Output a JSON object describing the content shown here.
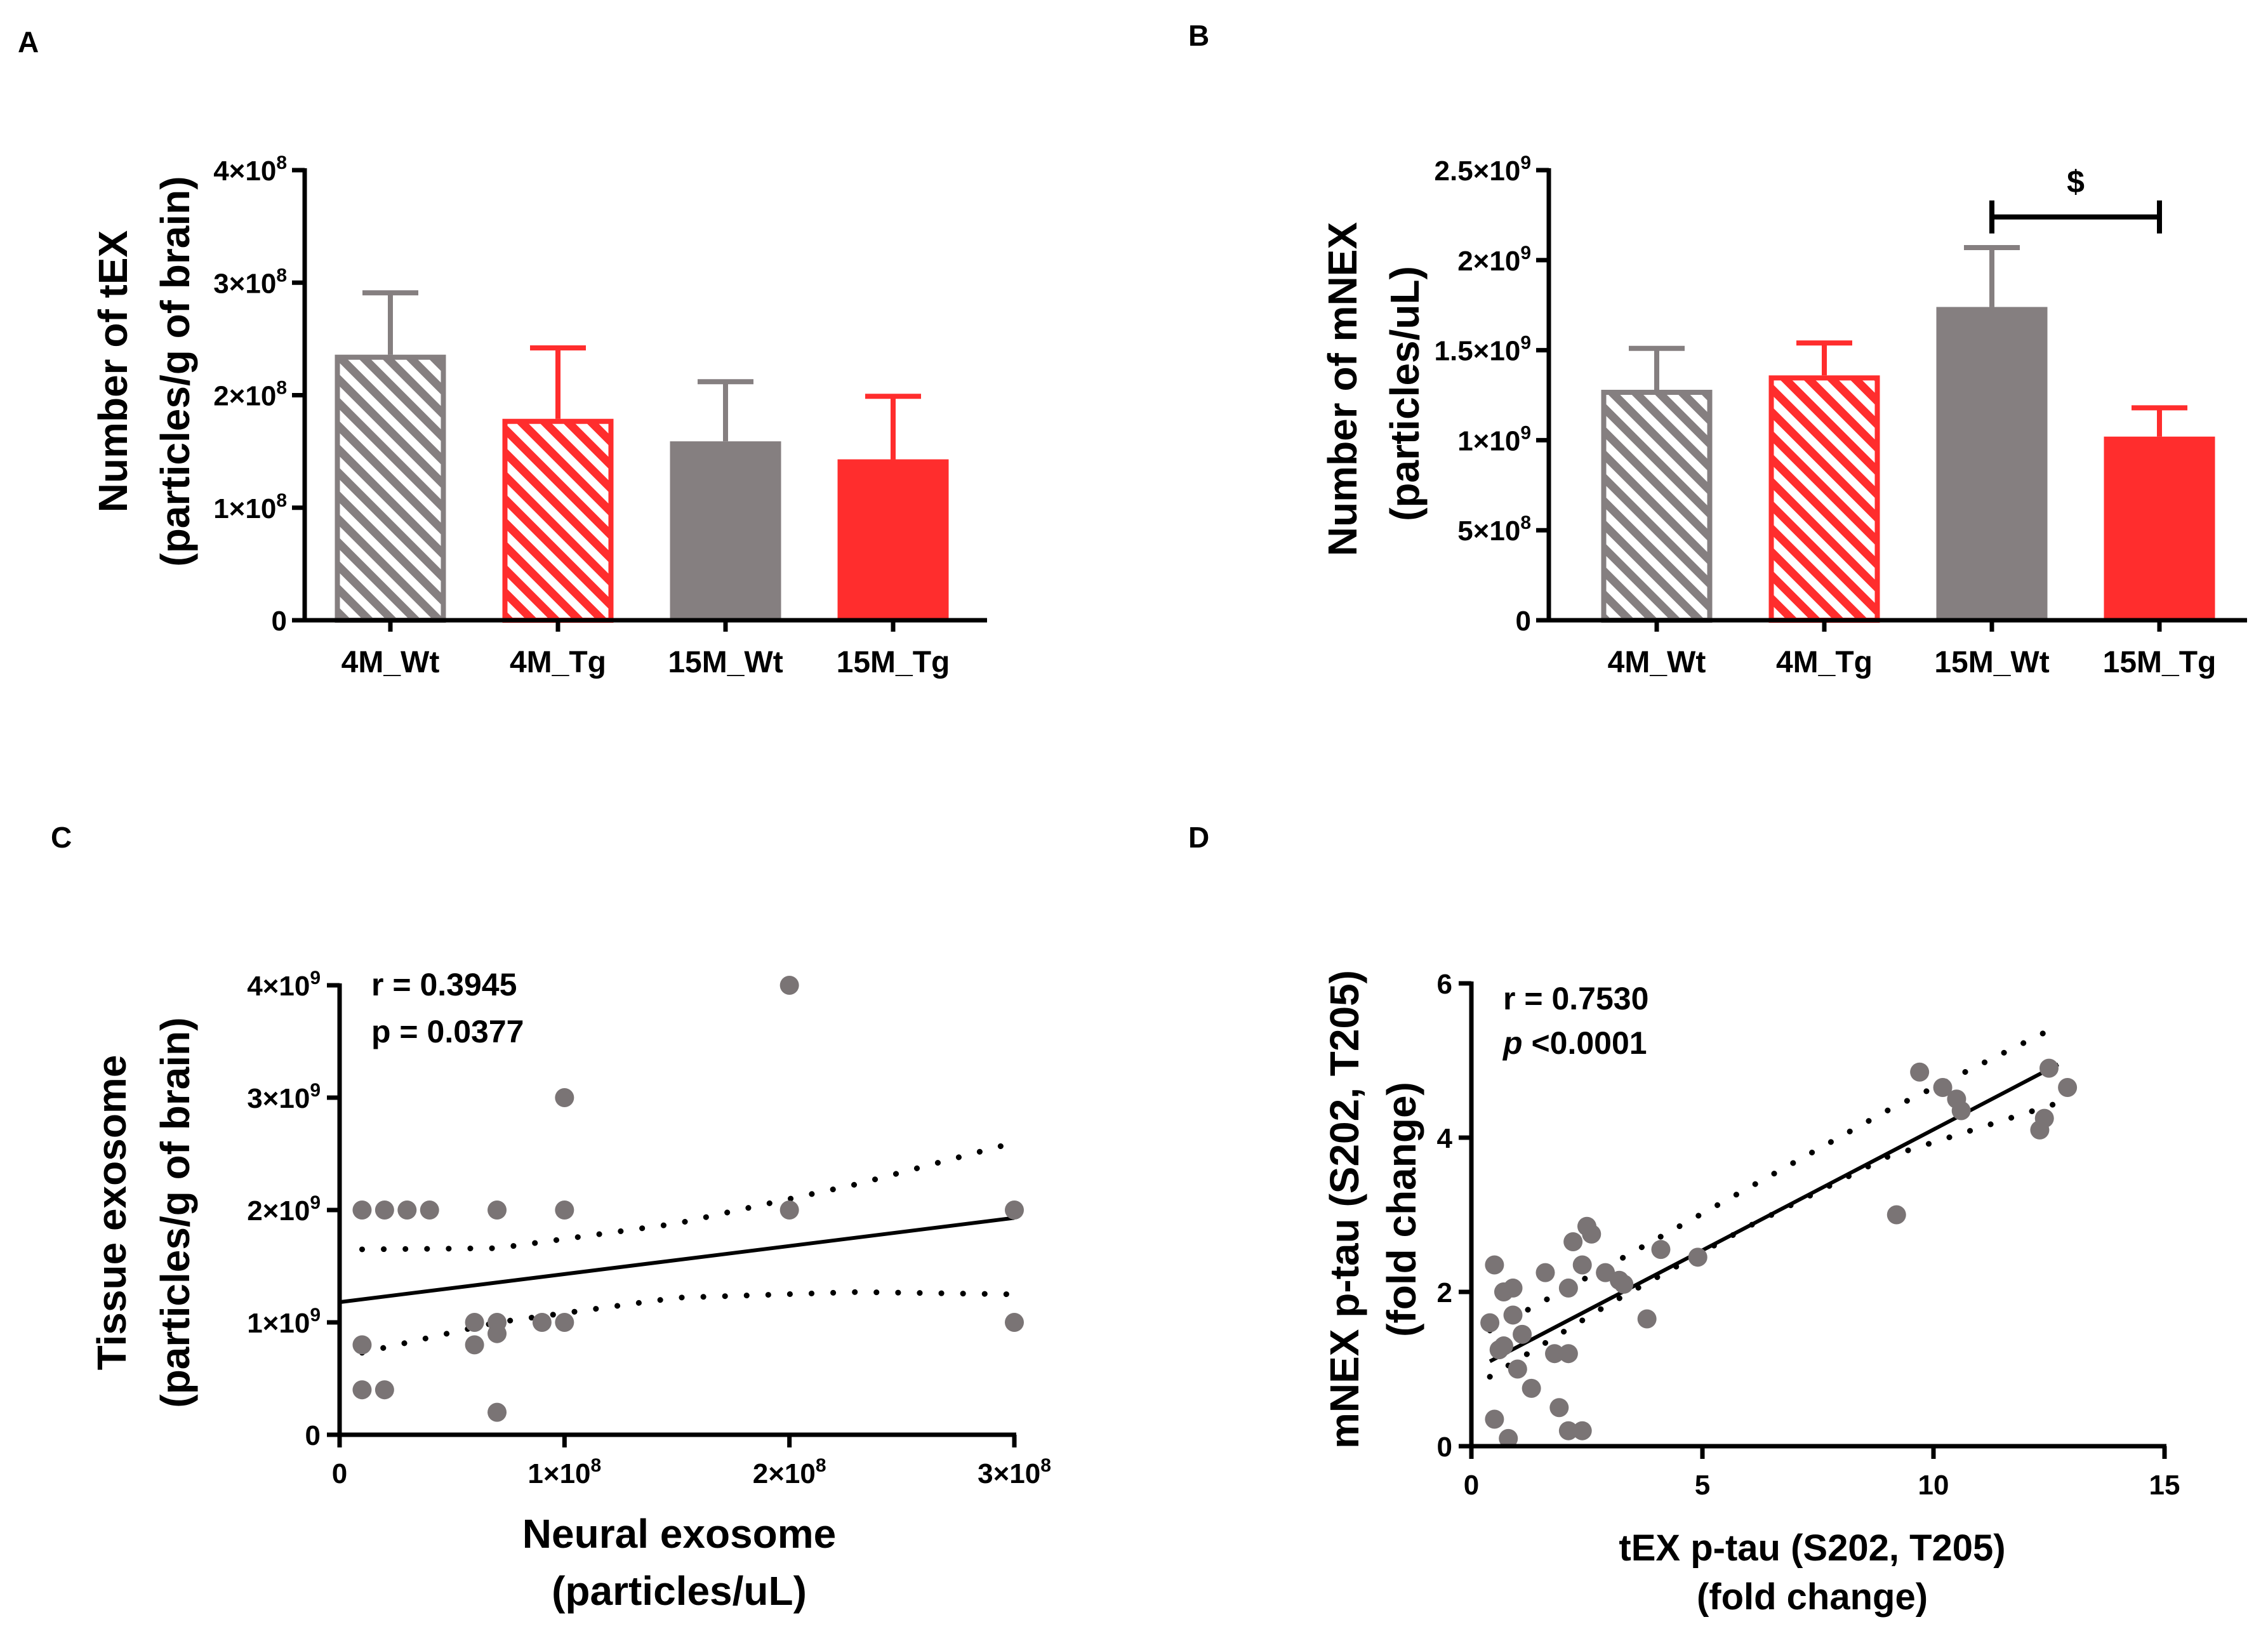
{
  "chart_data": [
    {
      "panel": "A",
      "type": "bar",
      "categories": [
        "4M_Wt",
        "4M_Tg",
        "15M_Wt",
        "15M_Tg"
      ],
      "values": [
        236000000,
        179000000,
        159000000,
        143000000
      ],
      "errors": [
        55000000,
        63000000,
        53000000,
        56000000
      ],
      "patterns": [
        "hatched",
        "hatched",
        "solid",
        "solid"
      ],
      "colors": [
        "#857f80",
        "#ff2d2d",
        "#857f80",
        "#ff2d2d"
      ],
      "ylabel": [
        "Number of tEX",
        "(particles/g of brain)"
      ],
      "ylim": [
        0,
        400000000
      ],
      "yticks": [
        {
          "value": 0,
          "label": "0"
        },
        {
          "value": 100000000,
          "label": "1×10",
          "exp": "8"
        },
        {
          "value": 200000000,
          "label": "2×10",
          "exp": "8"
        },
        {
          "value": 300000000,
          "label": "3×10",
          "exp": "8"
        },
        {
          "value": 400000000,
          "label": "4×10",
          "exp": "8"
        }
      ]
    },
    {
      "panel": "B",
      "type": "bar",
      "categories": [
        "4M_Wt",
        "4M_Tg",
        "15M_Wt",
        "15M_Tg"
      ],
      "values": [
        1280000000,
        1360000000,
        1740000000,
        1020000000
      ],
      "errors": [
        230000000,
        180000000,
        330000000,
        160000000
      ],
      "patterns": [
        "hatched",
        "hatched",
        "solid",
        "solid"
      ],
      "colors": [
        "#857f80",
        "#ff2d2d",
        "#857f80",
        "#ff2d2d"
      ],
      "ylabel": [
        "Number of mNEX",
        "(particles/uL)"
      ],
      "ylim": [
        0,
        2500000000
      ],
      "yticks": [
        {
          "value": 0,
          "label": "0"
        },
        {
          "value": 500000000,
          "label": "5×10",
          "exp": "8"
        },
        {
          "value": 1000000000,
          "label": "1×10",
          "exp": "9"
        },
        {
          "value": 1500000000,
          "label": "1.5×10",
          "exp": "9"
        },
        {
          "value": 2000000000,
          "label": "2×10",
          "exp": "9"
        },
        {
          "value": 2500000000,
          "label": "2.5×10",
          "exp": "9"
        }
      ],
      "significance": {
        "from": "15M_Wt",
        "to": "15M_Tg",
        "label": "$",
        "level": 2240000000
      }
    },
    {
      "panel": "C",
      "type": "scatter",
      "points": [
        [
          10000000,
          2000000000
        ],
        [
          20000000,
          2000000000
        ],
        [
          30000000,
          2000000000
        ],
        [
          40000000,
          2000000000
        ],
        [
          70000000,
          2000000000
        ],
        [
          100000000,
          2000000000
        ],
        [
          200000000,
          2000000000
        ],
        [
          300000000,
          2000000000
        ],
        [
          200000000,
          4000000000
        ],
        [
          100000000,
          3000000000
        ],
        [
          10000000,
          800000000
        ],
        [
          10000000,
          400000000
        ],
        [
          20000000,
          400000000
        ],
        [
          60000000,
          1000000000
        ],
        [
          60000000,
          800000000
        ],
        [
          70000000,
          1000000000
        ],
        [
          70000000,
          900000000
        ],
        [
          90000000,
          1000000000
        ],
        [
          100000000,
          1000000000
        ],
        [
          300000000,
          1000000000
        ],
        [
          70000000,
          200000000
        ]
      ],
      "fit": {
        "x": [
          0,
          300000000
        ],
        "y": [
          1180000000,
          1930000000
        ]
      },
      "ci_upper": {
        "x": [
          10000000,
          70000000,
          150000000,
          230000000,
          300000000
        ],
        "y": [
          1650000000,
          1660000000,
          1880000000,
          2230000000,
          2600000000
        ]
      },
      "ci_lower": {
        "x": [
          10000000,
          70000000,
          150000000,
          230000000,
          300000000
        ],
        "y": [
          730000000,
          1000000000,
          1220000000,
          1270000000,
          1250000000
        ]
      },
      "xlabel": [
        "Neural exosome",
        "(particles/uL)"
      ],
      "ylabel": [
        "Tissue exosome",
        "(particles/g of brain)"
      ],
      "xlim": [
        0,
        300000000
      ],
      "ylim": [
        0,
        4000000000
      ],
      "xticks": [
        {
          "value": 0,
          "label": "0"
        },
        {
          "value": 100000000,
          "label": "1×10",
          "exp": "8"
        },
        {
          "value": 200000000,
          "label": "2×10",
          "exp": "8"
        },
        {
          "value": 300000000,
          "label": "3×10",
          "exp": "8"
        }
      ],
      "yticks": [
        {
          "value": 0,
          "label": "0"
        },
        {
          "value": 1000000000,
          "label": "1×10",
          "exp": "9"
        },
        {
          "value": 2000000000,
          "label": "2×10",
          "exp": "9"
        },
        {
          "value": 3000000000,
          "label": "3×10",
          "exp": "9"
        },
        {
          "value": 4000000000,
          "label": "4×10",
          "exp": "9"
        }
      ],
      "stats": {
        "r": "r = 0.3945",
        "p": "p = 0.0377"
      }
    },
    {
      "panel": "D",
      "type": "scatter",
      "points": [
        [
          0.5,
          2.35
        ],
        [
          0.4,
          1.6
        ],
        [
          0.7,
          2.0
        ],
        [
          0.9,
          2.05
        ],
        [
          0.6,
          1.25
        ],
        [
          0.7,
          1.3
        ],
        [
          0.9,
          1.7
        ],
        [
          1.1,
          1.45
        ],
        [
          0.5,
          0.35
        ],
        [
          0.8,
          0.1
        ],
        [
          1.0,
          1.0
        ],
        [
          1.3,
          0.75
        ],
        [
          1.6,
          2.25
        ],
        [
          1.8,
          1.2
        ],
        [
          2.1,
          1.2
        ],
        [
          1.9,
          0.5
        ],
        [
          2.1,
          0.2
        ],
        [
          2.4,
          0.2
        ],
        [
          2.2,
          2.65
        ],
        [
          2.4,
          2.35
        ],
        [
          2.1,
          2.05
        ],
        [
          2.5,
          2.85
        ],
        [
          2.6,
          2.75
        ],
        [
          2.9,
          2.25
        ],
        [
          3.2,
          2.15
        ],
        [
          3.3,
          2.1
        ],
        [
          3.8,
          1.65
        ],
        [
          4.1,
          2.55
        ],
        [
          4.9,
          2.45
        ],
        [
          9.2,
          3.0
        ],
        [
          9.7,
          4.85
        ],
        [
          10.2,
          4.65
        ],
        [
          10.5,
          4.5
        ],
        [
          10.6,
          4.35
        ],
        [
          12.3,
          4.1
        ],
        [
          12.4,
          4.25
        ],
        [
          12.5,
          4.9
        ],
        [
          12.9,
          4.65
        ]
      ],
      "fit": {
        "x": [
          0.4,
          12.7
        ],
        "y": [
          1.1,
          4.95
        ]
      },
      "ci_upper": {
        "x": [
          0.4,
          3,
          6,
          9,
          12.7
        ],
        "y": [
          1.5,
          2.35,
          3.35,
          4.35,
          5.45
        ]
      },
      "ci_lower": {
        "x": [
          0.4,
          3,
          6,
          9,
          12.7
        ],
        "y": [
          0.9,
          1.85,
          2.85,
          3.75,
          4.45
        ]
      },
      "xlabel": [
        "tEX p-tau (S202, T205)",
        "(fold change)"
      ],
      "ylabel": [
        "mNEX p-tau (S202, T205)",
        "(fold change)"
      ],
      "xlim": [
        0,
        15
      ],
      "ylim": [
        0,
        6
      ],
      "xticks": [
        {
          "value": 0,
          "label": "0"
        },
        {
          "value": 5,
          "label": "5"
        },
        {
          "value": 10,
          "label": "10"
        },
        {
          "value": 15,
          "label": "15"
        }
      ],
      "yticks": [
        {
          "value": 0,
          "label": "0"
        },
        {
          "value": 2,
          "label": "2"
        },
        {
          "value": 4,
          "label": "4"
        },
        {
          "value": 6,
          "label": "6"
        }
      ],
      "stats": {
        "r": "r = 0.7530",
        "p_symbol": "p",
        "p_value": " <0.0001"
      }
    }
  ]
}
